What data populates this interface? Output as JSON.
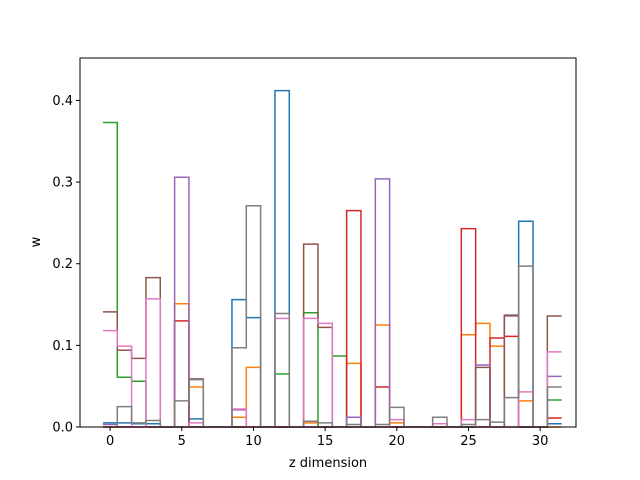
{
  "chart_data": {
    "type": "step",
    "xlabel": "z dimension",
    "ylabel": "w",
    "xlim": [
      -2.1,
      32.5
    ],
    "ylim": [
      0,
      0.452
    ],
    "xticks": [
      0,
      5,
      10,
      15,
      20,
      25,
      30
    ],
    "yticks": [
      0.0,
      0.1,
      0.2,
      0.3,
      0.4
    ],
    "xtick_labels": [
      "0",
      "5",
      "10",
      "15",
      "20",
      "25",
      "30"
    ],
    "ytick_labels": [
      "0.0",
      "0.1",
      "0.2",
      "0.3",
      "0.4"
    ],
    "grid": false,
    "legend": "none",
    "x": [
      0,
      1,
      2,
      3,
      4,
      5,
      6,
      7,
      8,
      9,
      10,
      11,
      12,
      13,
      14,
      15,
      16,
      17,
      18,
      19,
      20,
      21,
      22,
      23,
      24,
      25,
      26,
      27,
      28,
      29,
      30,
      31
    ],
    "series": [
      {
        "color": "#1f77b4",
        "values": [
          0.005,
          0.005,
          0.004,
          0.004,
          0.0,
          0.0,
          0.01,
          0.0,
          0.0,
          0.156,
          0.134,
          0.0,
          0.412,
          0.0,
          0.0,
          0.0,
          0.0,
          0.0,
          0.0,
          0.0,
          0.0,
          0.0,
          0.0,
          0.0,
          0.0,
          0.0,
          0.0,
          0.0,
          0.0,
          0.252,
          0.0,
          0.004
        ]
      },
      {
        "color": "#ff7f0e",
        "values": [
          0.0,
          0.0,
          0.0,
          0.0,
          0.0,
          0.151,
          0.049,
          0.0,
          0.0,
          0.012,
          0.073,
          0.0,
          0.0,
          0.0,
          0.005,
          0.0,
          0.0,
          0.078,
          0.0,
          0.125,
          0.005,
          0.0,
          0.0,
          0.0,
          0.0,
          0.113,
          0.127,
          0.099,
          0.0,
          0.032,
          0.0,
          0.0
        ]
      },
      {
        "color": "#2ca02c",
        "values": [
          0.373,
          0.061,
          0.056,
          0.0,
          0.0,
          0.0,
          0.0,
          0.0,
          0.0,
          0.0,
          0.0,
          0.0,
          0.065,
          0.0,
          0.14,
          0.0,
          0.087,
          0.0,
          0.0,
          0.0,
          0.0,
          0.0,
          0.0,
          0.0,
          0.0,
          0.0,
          0.0,
          0.0,
          0.0,
          0.0,
          0.0,
          0.033
        ]
      },
      {
        "color": "#d62728",
        "values": [
          0.0,
          0.0,
          0.0,
          0.0,
          0.0,
          0.13,
          0.0,
          0.0,
          0.0,
          0.0,
          0.0,
          0.0,
          0.0,
          0.0,
          0.0,
          0.0,
          0.0,
          0.265,
          0.0,
          0.049,
          0.0,
          0.0,
          0.0,
          0.0,
          0.0,
          0.243,
          0.0,
          0.109,
          0.111,
          0.0,
          0.0,
          0.011
        ]
      },
      {
        "color": "#9467bd",
        "values": [
          0.003,
          0.0,
          0.0,
          0.0,
          0.0,
          0.306,
          0.0,
          0.0,
          0.0,
          0.021,
          0.0,
          0.0,
          0.0,
          0.0,
          0.0,
          0.0,
          0.0,
          0.012,
          0.0,
          0.304,
          0.0,
          0.0,
          0.0,
          0.0,
          0.0,
          0.0,
          0.076,
          0.0,
          0.136,
          0.0,
          0.0,
          0.062
        ]
      },
      {
        "color": "#8c564b",
        "values": [
          0.141,
          0.094,
          0.084,
          0.183,
          0.0,
          0.0,
          0.059,
          0.0,
          0.0,
          0.0,
          0.0,
          0.0,
          0.0,
          0.0,
          0.224,
          0.122,
          0.0,
          0.0,
          0.0,
          0.0,
          0.0,
          0.0,
          0.0,
          0.0,
          0.0,
          0.0,
          0.073,
          0.0,
          0.137,
          0.0,
          0.0,
          0.136
        ]
      },
      {
        "color": "#e377c2",
        "values": [
          0.118,
          0.099,
          0.0,
          0.157,
          0.0,
          0.0,
          0.005,
          0.0,
          0.0,
          0.022,
          0.0,
          0.0,
          0.133,
          0.0,
          0.133,
          0.127,
          0.0,
          0.0,
          0.0,
          0.0,
          0.009,
          0.0,
          0.0,
          0.004,
          0.0,
          0.009,
          0.0,
          0.0,
          0.0,
          0.043,
          0.0,
          0.092
        ]
      },
      {
        "color": "#7f7f7f",
        "values": [
          0.0,
          0.025,
          0.005,
          0.008,
          0.0,
          0.032,
          0.058,
          0.0,
          0.0,
          0.097,
          0.271,
          0.0,
          0.139,
          0.0,
          0.007,
          0.005,
          0.0,
          0.003,
          0.0,
          0.003,
          0.024,
          0.0,
          0.0,
          0.012,
          0.0,
          0.003,
          0.009,
          0.006,
          0.036,
          0.197,
          0.0,
          0.049
        ]
      }
    ]
  }
}
